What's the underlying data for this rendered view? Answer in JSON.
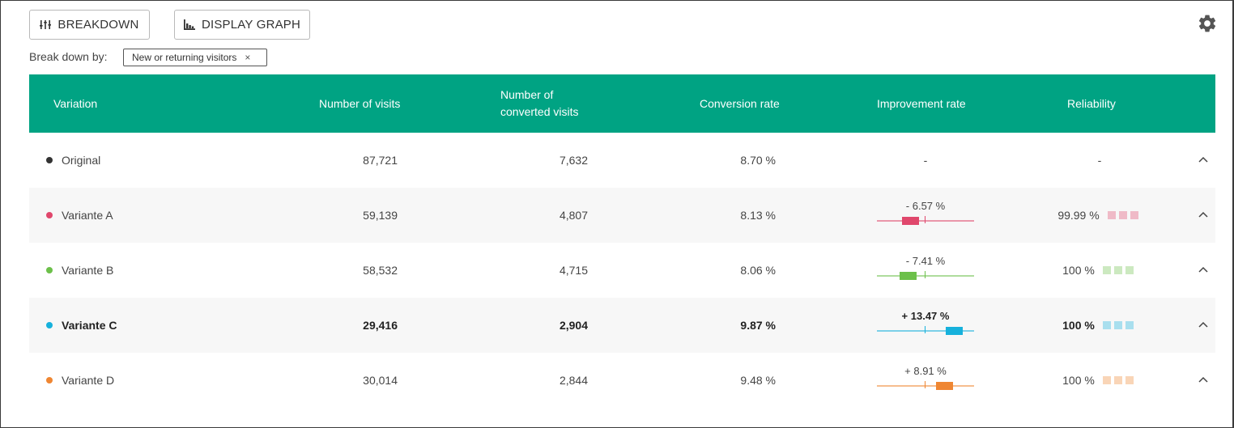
{
  "toolbar": {
    "breakdown_label": "BREAKDOWN",
    "graph_label": "DISPLAY GRAPH",
    "breakdown_icon": "sliders-icon",
    "graph_icon": "bar-chart-icon",
    "settings_icon": "gear-icon"
  },
  "filter": {
    "label": "Break down by:",
    "chip": "New or returning visitors",
    "chip_close": "×"
  },
  "table": {
    "headers": {
      "variation": "Variation",
      "visits": "Number of visits",
      "converted_1": "Number of",
      "converted_2": "converted visits",
      "conversion": "Conversion rate",
      "improvement": "Improvement rate",
      "reliability": "Reliability"
    },
    "header_color": "#00a383",
    "rows": [
      {
        "name": "Original",
        "color": "#333333",
        "visits": "87,721",
        "converted": "7,632",
        "rate": "8.70 %",
        "improvement": "-",
        "improvement_value": null,
        "reliability": "-",
        "bold": false
      },
      {
        "name": "Variante A",
        "color": "#e0476c",
        "visits": "59,139",
        "converted": "4,807",
        "rate": "8.13 %",
        "improvement": "- 6.57 %",
        "improvement_value": -6.57,
        "reliability": "99.99 %",
        "bold": false
      },
      {
        "name": "Variante B",
        "color": "#6cc04a",
        "visits": "58,532",
        "converted": "4,715",
        "rate": "8.06 %",
        "improvement": "- 7.41 %",
        "improvement_value": -7.41,
        "reliability": "100 %",
        "bold": false
      },
      {
        "name": "Variante C",
        "color": "#16b1dc",
        "visits": "29,416",
        "converted": "2,904",
        "rate": "9.87 %",
        "improvement": "+ 13.47 %",
        "improvement_value": 13.47,
        "reliability": "100 %",
        "bold": true
      },
      {
        "name": "Variante D",
        "color": "#ef8632",
        "visits": "30,014",
        "converted": "2,844",
        "rate": "9.48 %",
        "improvement": "+ 8.91 %",
        "improvement_value": 8.91,
        "reliability": "100 %",
        "bold": false
      }
    ],
    "row_action_icon": "chevron-up-icon"
  }
}
